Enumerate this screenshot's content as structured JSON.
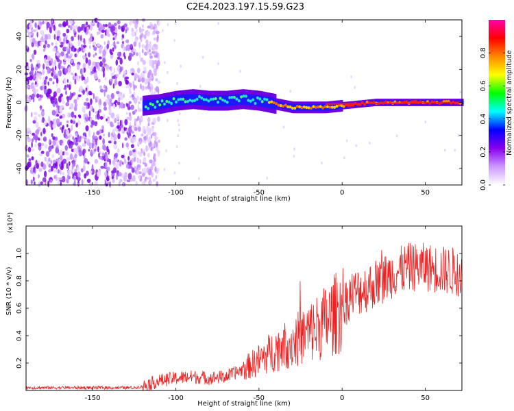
{
  "title": "C2E4.2023.197.15.59.G23",
  "chart_data": [
    {
      "type": "heatmap",
      "panel": "top",
      "xlabel": "Height of straight line (km)",
      "ylabel": "Frequency (Hz)",
      "xlim": [
        -190,
        72
      ],
      "ylim": [
        -50,
        50
      ],
      "x_ticks": [
        -150,
        -100,
        -50,
        0,
        50
      ],
      "y_ticks": [
        -40,
        -20,
        0,
        20,
        40
      ],
      "ridge": {
        "x": [
          -120,
          -110,
          -100,
          -90,
          -80,
          -70,
          -60,
          -50,
          -40,
          -30,
          -20,
          -10,
          0,
          10,
          20,
          30,
          40,
          50,
          60,
          72
        ],
        "freq": [
          -2,
          -1,
          1,
          2,
          1,
          1,
          2,
          1,
          -1,
          -3,
          -3,
          -3,
          -2,
          -1,
          0,
          0,
          0,
          0,
          0,
          0
        ]
      },
      "noise_region_x": [
        -190,
        -110
      ],
      "colorbar": {
        "label": "Normalized spectral amplitude",
        "range": [
          0,
          1
        ],
        "ticks": [
          "0.0",
          "0.2",
          "0.4",
          "0.6",
          "0.8"
        ],
        "colors": [
          "#ffffff",
          "#cc99ff",
          "#8800ee",
          "#0000ff",
          "#00ffff",
          "#00ff00",
          "#ffff00",
          "#ff8800",
          "#ff0000",
          "#ff00aa"
        ]
      }
    },
    {
      "type": "line",
      "panel": "bottom",
      "xlabel": "Height of straight line (km)",
      "ylabel": "SNR (10 * v/v)",
      "y_multiplier": "(x10⁴)",
      "xlim": [
        -190,
        72
      ],
      "ylim": [
        0,
        1.2
      ],
      "x_ticks": [
        -150,
        -100,
        -50,
        0,
        50
      ],
      "y_ticks": [
        "0.2",
        "0.4",
        "0.6",
        "0.8",
        "1.0"
      ],
      "series": [
        {
          "name": "SNR",
          "color": "#ee2222",
          "x": [
            -190,
            -150,
            -125,
            -120,
            -115,
            -110,
            -100,
            -90,
            -80,
            -70,
            -60,
            -50,
            -40,
            -30,
            -20,
            -10,
            0,
            5,
            10,
            20,
            30,
            40,
            50,
            60,
            72
          ],
          "y": [
            0.02,
            0.02,
            0.02,
            0.03,
            0.05,
            0.07,
            0.09,
            0.1,
            0.09,
            0.1,
            0.15,
            0.22,
            0.3,
            0.35,
            0.42,
            0.5,
            0.6,
            0.7,
            0.72,
            0.78,
            0.85,
            0.9,
            0.9,
            0.88,
            0.86
          ]
        }
      ]
    }
  ]
}
